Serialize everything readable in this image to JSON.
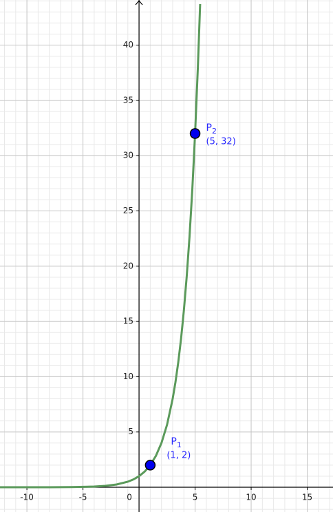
{
  "chart_data": {
    "type": "line",
    "x": [
      -12.4,
      -12,
      -10,
      -8,
      -6,
      -4,
      -3,
      -2,
      -1,
      -0.5,
      0,
      0.5,
      1,
      1.5,
      2,
      2.5,
      3,
      3.25,
      3.5,
      3.75,
      4,
      4.25,
      4.5,
      4.75,
      5,
      5.25,
      5.45
    ],
    "series": [
      {
        "color": "#5b9a5b",
        "values": [
          0.000185,
          0.000244,
          0.000977,
          0.0039,
          0.0156,
          0.0625,
          0.125,
          0.25,
          0.5,
          0.7071,
          1,
          1.4142,
          2,
          2.8284,
          4,
          5.6569,
          8,
          9.5137,
          11.3137,
          13.4543,
          16,
          19.0273,
          22.6274,
          26.9087,
          32,
          38.0546,
          43.713
        ]
      }
    ],
    "points": [
      {
        "name": "P",
        "subscript": "1",
        "label": "(1, 2)",
        "x": 1,
        "y": 2
      },
      {
        "name": "P",
        "subscript": "2",
        "label": "(5, 32)",
        "x": 5,
        "y": 32
      }
    ],
    "point_color": "#0000ee",
    "label_color": "#2a2aff",
    "xlim": [
      -12.4,
      17.3
    ],
    "ylim": [
      -2.24,
      44.08
    ],
    "xticks": [
      -10,
      -5,
      0,
      5,
      10,
      15
    ],
    "yticks": [
      5,
      10,
      15,
      20,
      25,
      30,
      35,
      40
    ],
    "xminor": [
      -12,
      -11,
      -10,
      -9,
      -8,
      -7,
      -6,
      -5,
      -4,
      -3,
      -2,
      -1,
      0,
      1,
      2,
      3,
      4,
      5,
      6,
      7,
      8,
      9,
      10,
      11,
      12,
      13,
      14,
      15,
      16,
      17
    ],
    "yminor": [
      -2,
      -1,
      0,
      1,
      2,
      3,
      4,
      5,
      6,
      7,
      8,
      9,
      10,
      11,
      12,
      13,
      14,
      15,
      16,
      17,
      18,
      19,
      20,
      21,
      22,
      23,
      24,
      25,
      26,
      27,
      28,
      29,
      30,
      31,
      32,
      33,
      34,
      35,
      36,
      37,
      38,
      39,
      40,
      41,
      42,
      43,
      44
    ],
    "grid": true
  }
}
